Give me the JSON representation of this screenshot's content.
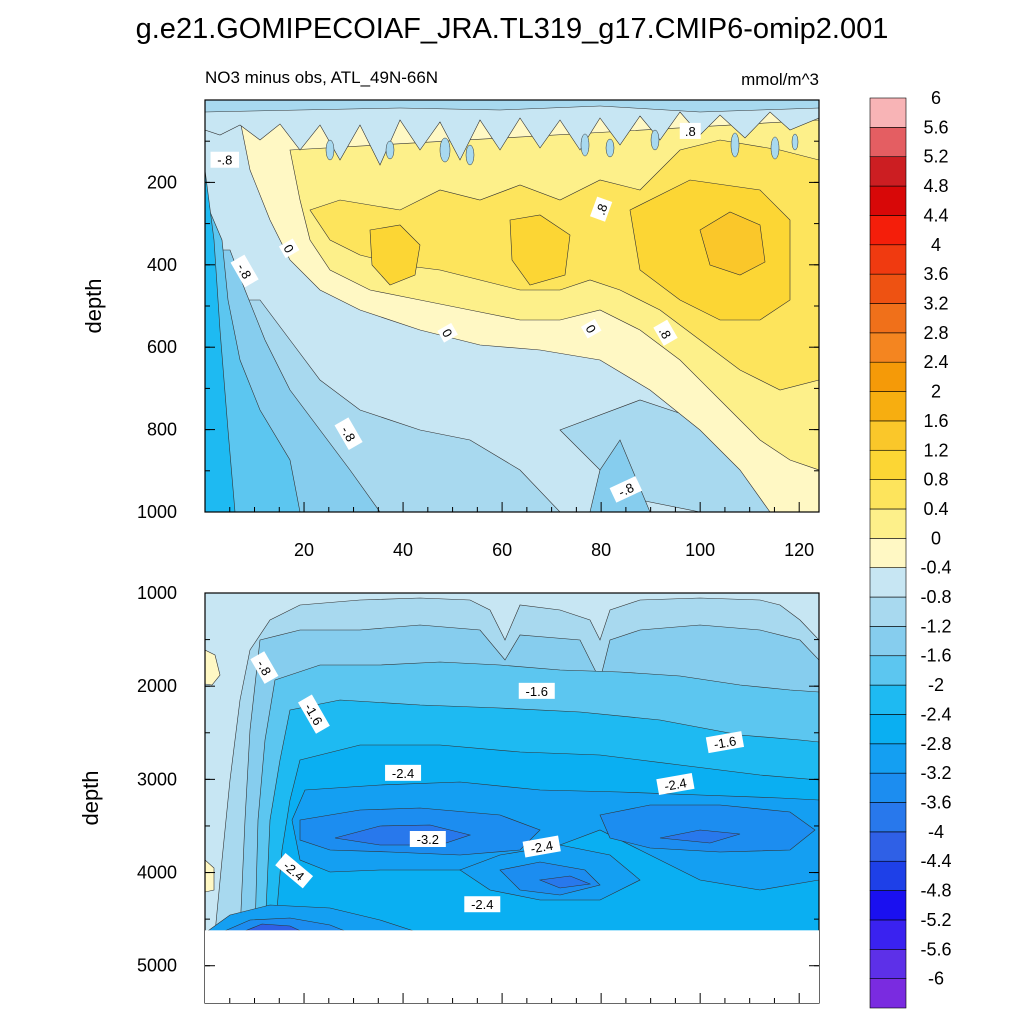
{
  "title": "g.e21.GOMIPECOIAF_JRA.TL319_g17.CMIP6-omip2.001",
  "chart_data": [
    {
      "type": "heatmap",
      "panel": "upper",
      "left_label": "NO3 minus obs, ATL_49N-66N",
      "right_label": "mmol/m^3",
      "ylabel": "depth",
      "x_range": [
        0,
        124
      ],
      "x_ticks": [
        20,
        40,
        60,
        80,
        100,
        120
      ],
      "y_range": [
        0,
        1000
      ],
      "y_reversed": true,
      "y_ticks": [
        200,
        400,
        600,
        800,
        1000
      ],
      "contour_labels": [
        {
          "text": "-.8",
          "x": 4,
          "y": 145,
          "rot": 0
        },
        {
          "text": ".8",
          "x": 98,
          "y": 75,
          "rot": 0
        },
        {
          "text": ".8",
          "x": 80,
          "y": 265,
          "rot": -70
        },
        {
          "text": "-.8",
          "x": 8,
          "y": 415,
          "rot": 60
        },
        {
          "text": "0",
          "x": 17,
          "y": 360,
          "rot": 60
        },
        {
          "text": "0",
          "x": 49,
          "y": 565,
          "rot": 60
        },
        {
          "text": "0",
          "x": 78,
          "y": 555,
          "rot": 60
        },
        {
          "text": ".8",
          "x": 93,
          "y": 565,
          "rot": 60
        },
        {
          "text": "-.8",
          "x": 29,
          "y": 810,
          "rot": 60
        },
        {
          "text": "-.8",
          "x": 85,
          "y": 945,
          "rot": -25
        }
      ]
    },
    {
      "type": "heatmap",
      "panel": "lower",
      "ylabel": "depth",
      "x_range": [
        0,
        124
      ],
      "y_range": [
        1000,
        5400
      ],
      "y_reversed": true,
      "y_ticks": [
        1000,
        2000,
        3000,
        4000,
        5000
      ],
      "data_bottom_depth": 4620,
      "contour_labels": [
        {
          "text": "-.8",
          "x": 12,
          "y": 1800,
          "rot": 60
        },
        {
          "text": "-1.6",
          "x": 22,
          "y": 2300,
          "rot": 60
        },
        {
          "text": "-1.6",
          "x": 67,
          "y": 2050,
          "rot": 0
        },
        {
          "text": "-1.6",
          "x": 105,
          "y": 2600,
          "rot": -10
        },
        {
          "text": "-2.4",
          "x": 40,
          "y": 2930,
          "rot": 0
        },
        {
          "text": "-2.4",
          "x": 95,
          "y": 3050,
          "rot": -10
        },
        {
          "text": "-3.2",
          "x": 45,
          "y": 3640,
          "rot": 0
        },
        {
          "text": "-2.4",
          "x": 68,
          "y": 3720,
          "rot": -10
        },
        {
          "text": "-2.4",
          "x": 18,
          "y": 3980,
          "rot": 40
        },
        {
          "text": "-2.4",
          "x": 56,
          "y": 4340,
          "rot": 0
        }
      ]
    }
  ],
  "colorbar": {
    "levels": [
      "-6",
      "-5.6",
      "-5.2",
      "-4.8",
      "-4.4",
      "-4",
      "-3.6",
      "-3.2",
      "-2.8",
      "-2.4",
      "-2",
      "-1.6",
      "-1.2",
      "-0.8",
      "-0.4",
      "0",
      "0.4",
      "0.8",
      "1.2",
      "1.6",
      "2",
      "2.4",
      "2.8",
      "3.2",
      "3.6",
      "4",
      "4.4",
      "4.8",
      "5.2",
      "5.6",
      "6"
    ],
    "colors": [
      "#7a2be0",
      "#5d30e8",
      "#3a22f0",
      "#1a10f0",
      "#1e40e8",
      "#2f60e6",
      "#2878ec",
      "#1c8df0",
      "#149ff2",
      "#0aaff2",
      "#1ebaf2",
      "#5cc6f0",
      "#86cdee",
      "#a8d9ef",
      "#c7e6f3",
      "#fff8c4",
      "#fdf08a",
      "#fde45c",
      "#fcd634",
      "#fac72a",
      "#f7ae10",
      "#f59a08",
      "#f48520",
      "#f0701a",
      "#ee5212",
      "#f03a10",
      "#f41e0a",
      "#d80808",
      "#cc1e22",
      "#e45e62",
      "#f8b4b6"
    ]
  }
}
